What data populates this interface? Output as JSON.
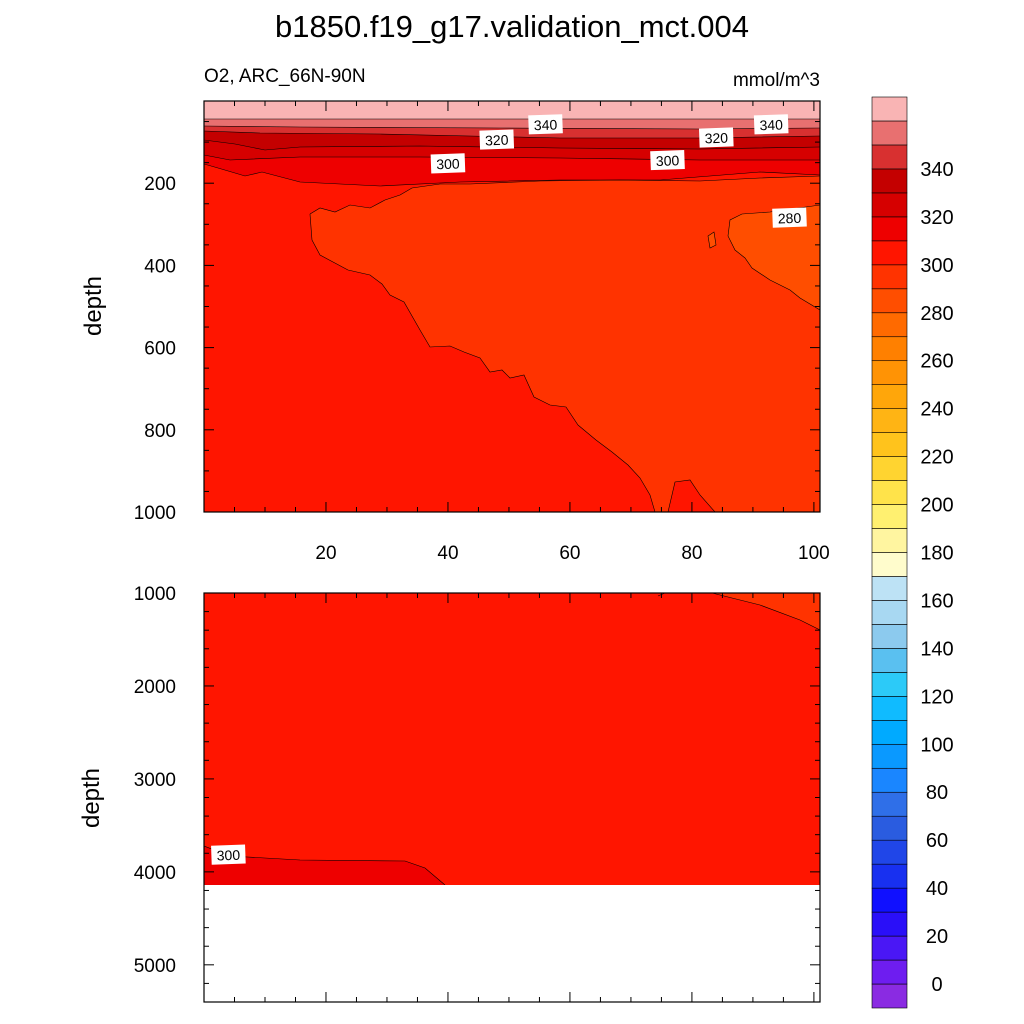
{
  "chart_data": {
    "type": "contour",
    "title": "b1850.f19_g17.validation_mct.004",
    "variable_label": "O2, ARC_66N-90N",
    "units_label": "mmol/m^3",
    "colorbar": {
      "ticks": [
        "0",
        "20",
        "40",
        "60",
        "80",
        "100",
        "120",
        "140",
        "160",
        "180",
        "200",
        "220",
        "240",
        "260",
        "280",
        "300",
        "320",
        "340"
      ],
      "levels": [
        0,
        10,
        20,
        30,
        40,
        50,
        60,
        70,
        80,
        90,
        100,
        110,
        120,
        130,
        140,
        150,
        160,
        170,
        180,
        190,
        200,
        210,
        220,
        230,
        240,
        250,
        260,
        270,
        280,
        290,
        300,
        310,
        320,
        330,
        340,
        350,
        360
      ],
      "colors": [
        "#8a2be2",
        "#6e1df0",
        "#4a17f5",
        "#2a0ff8",
        "#1010ff",
        "#1830f0",
        "#2046e8",
        "#2a5ce0",
        "#2f6fe8",
        "#1a86ff",
        "#0a99ff",
        "#00aaff",
        "#10bbff",
        "#2ccaf8",
        "#5ac0f0",
        "#8ccaee",
        "#a8d8f2",
        "#bde2f5",
        "#fffccc",
        "#fff5a0",
        "#fff070",
        "#ffe34a",
        "#ffd430",
        "#ffc31c",
        "#ffb414",
        "#ffa60a",
        "#ff9305",
        "#ff8000",
        "#ff6a00",
        "#ff4e00",
        "#ff3300",
        "#ff1500",
        "#ee0000",
        "#d60000",
        "#c40000",
        "#d83030",
        "#e87070",
        "#f9b4b4"
      ]
    },
    "panels": [
      {
        "name": "upper",
        "ylabel": "depth",
        "ylim": [
          0,
          1000
        ],
        "yticks": [
          200,
          400,
          600,
          800,
          1000
        ],
        "xlim": [
          0,
          101
        ],
        "xticks": [
          20,
          40,
          60,
          80,
          100
        ],
        "contour_labels": [
          {
            "text": "340",
            "x": 56,
            "y": 58
          },
          {
            "text": "340",
            "x": 93,
            "y": 58
          },
          {
            "text": "320",
            "x": 48,
            "y": 95
          },
          {
            "text": "320",
            "x": 84,
            "y": 90
          },
          {
            "text": "300",
            "x": 40,
            "y": 153
          },
          {
            "text": "300",
            "x": 76,
            "y": 145
          },
          {
            "text": "280",
            "x": 96,
            "y": 285
          }
        ]
      },
      {
        "name": "lower",
        "ylabel": "depth",
        "ylim": [
          1000,
          5400
        ],
        "yticks": [
          1000,
          2000,
          3000,
          4000,
          5000
        ],
        "xlim": [
          0,
          101
        ],
        "sea_floor_depth": 4120,
        "contour_labels": [
          {
            "text": "300",
            "x": 4,
            "y": 3820
          }
        ]
      }
    ]
  }
}
